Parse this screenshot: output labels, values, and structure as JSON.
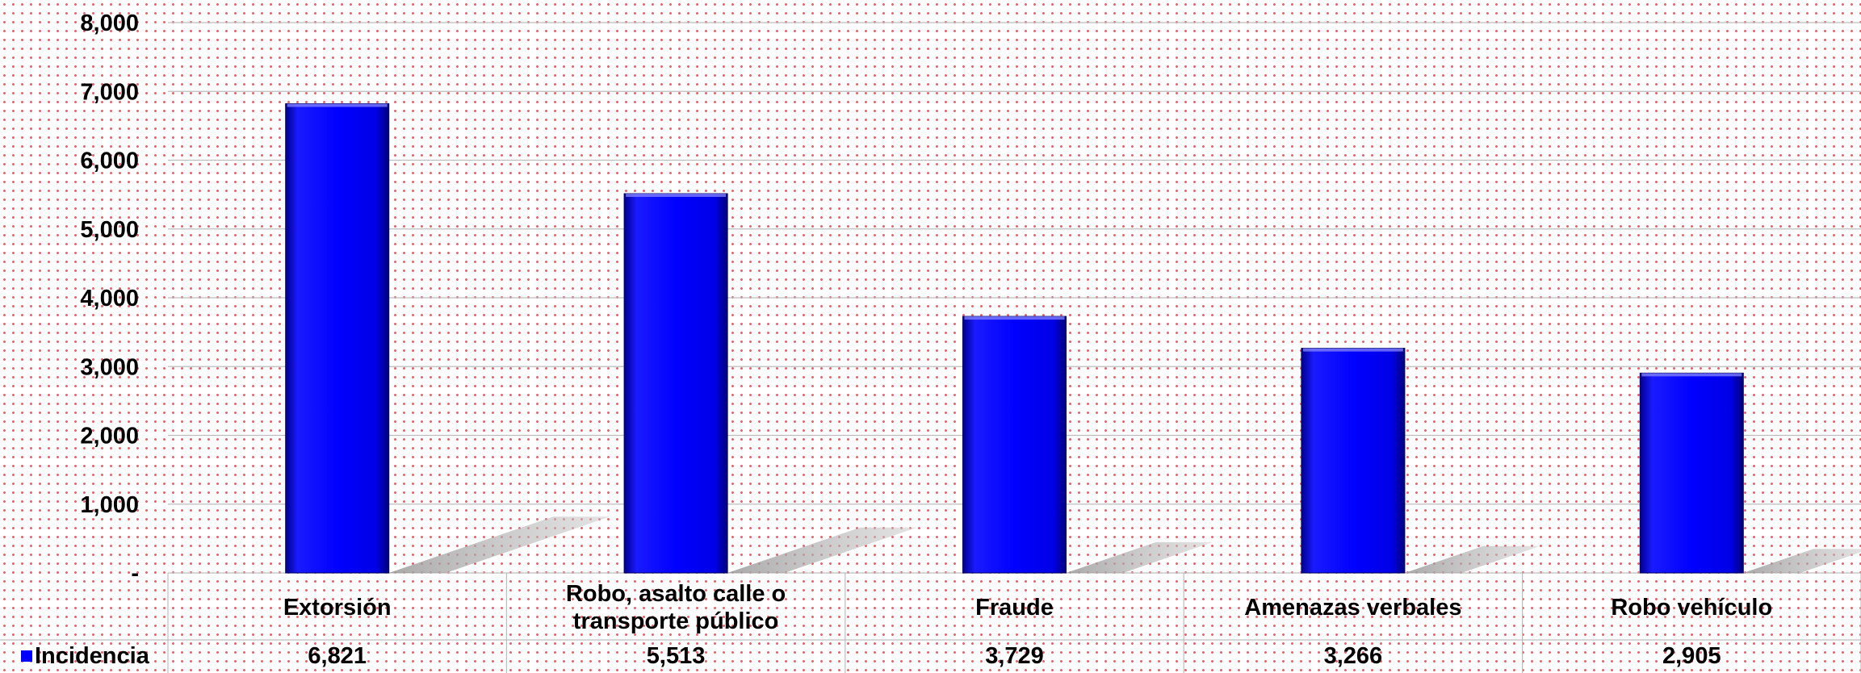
{
  "chart_data": {
    "type": "bar",
    "categories": [
      "Extorsión",
      "Robo, asalto calle o transporte público",
      "Fraude",
      "Amenazas verbales",
      "Robo vehículo"
    ],
    "category_lines": [
      [
        "Extorsión"
      ],
      [
        "Robo, asalto calle o",
        "transporte público"
      ],
      [
        "Fraude"
      ],
      [
        "Amenazas verbales"
      ],
      [
        "Robo vehículo"
      ]
    ],
    "series": [
      {
        "name": "Incidencia",
        "values": [
          6821,
          5513,
          3729,
          3266,
          2905
        ],
        "color": "#0000ff"
      }
    ],
    "value_labels": [
      "6,821",
      "5,513",
      "3,729",
      "3,266",
      "2,905"
    ],
    "yticks": [
      0,
      1000,
      2000,
      3000,
      4000,
      5000,
      6000,
      7000,
      8000
    ],
    "ytick_labels": [
      "-",
      "1,000",
      "2,000",
      "3,000",
      "4,000",
      "5,000",
      "6,000",
      "7,000",
      "8,000"
    ],
    "ylim": [
      0,
      8000
    ],
    "grid": true,
    "legend": "data-table-row"
  }
}
